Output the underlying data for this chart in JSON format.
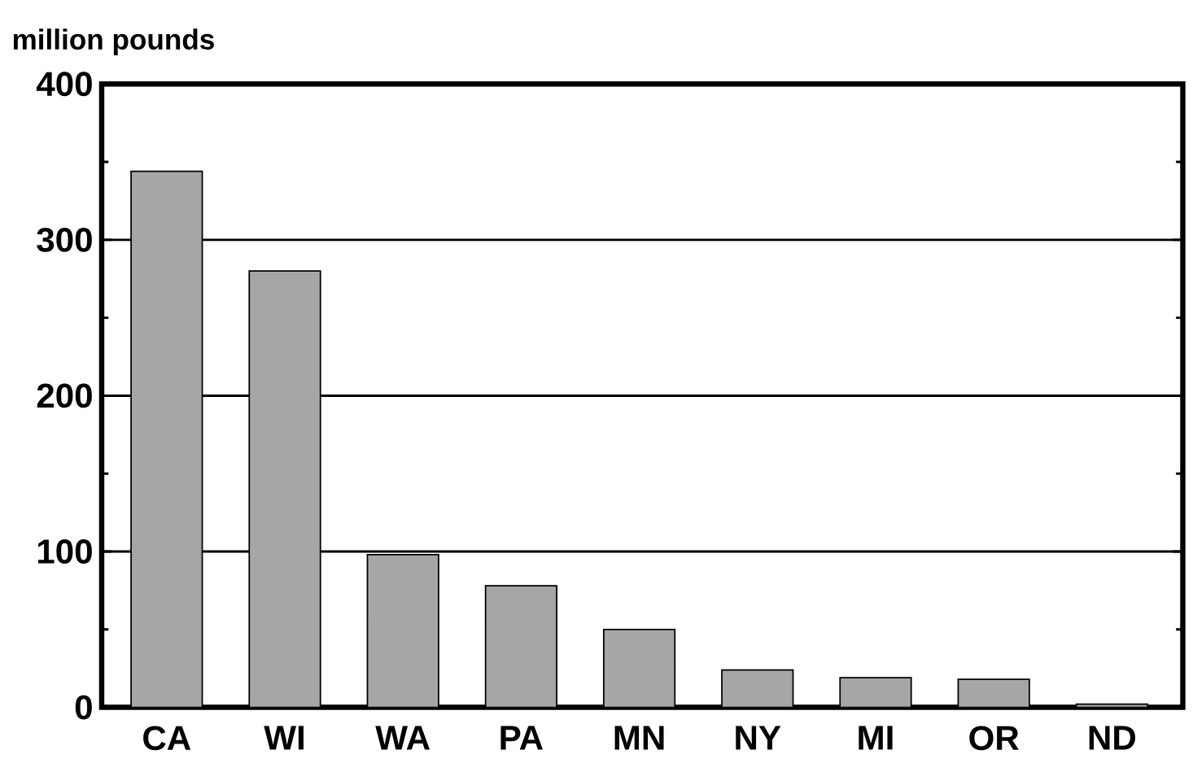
{
  "chart_data": {
    "type": "bar",
    "ylabel": "million pounds",
    "categories": [
      "CA",
      "WI",
      "WA",
      "PA",
      "MN",
      "NY",
      "MI",
      "OR",
      "ND"
    ],
    "values": [
      344,
      280,
      98,
      78,
      50,
      24,
      19,
      18,
      2
    ],
    "color": "#a6a6a6",
    "ylim": [
      0,
      400
    ],
    "yticks": [
      0,
      100,
      200,
      300,
      400
    ],
    "grid": "y"
  }
}
